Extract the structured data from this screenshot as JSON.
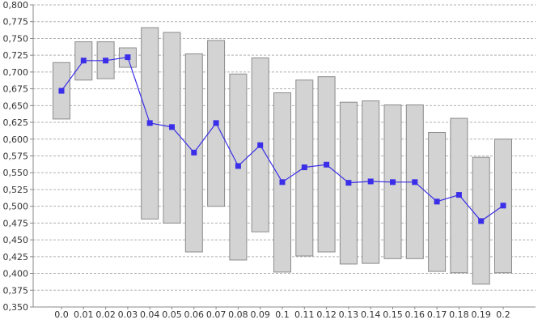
{
  "chart_data": {
    "type": "line",
    "subtype": "box-range-with-line",
    "categories": [
      "0.0",
      "0.01",
      "0.02",
      "0.03",
      "0.04",
      "0.05",
      "0.06",
      "0.07",
      "0.08",
      "0.09",
      "0.1",
      "0.11",
      "0.12",
      "0.13",
      "0.14",
      "0.15",
      "0.16",
      "0.17",
      "0.18",
      "0.19",
      "0.2"
    ],
    "range_low": [
      0.63,
      0.688,
      0.69,
      0.707,
      0.481,
      0.475,
      0.432,
      0.5,
      0.42,
      0.462,
      0.402,
      0.426,
      0.432,
      0.414,
      0.415,
      0.422,
      0.422,
      0.403,
      0.401,
      0.384,
      0.401
    ],
    "range_high": [
      0.714,
      0.745,
      0.745,
      0.736,
      0.766,
      0.759,
      0.727,
      0.747,
      0.697,
      0.721,
      0.669,
      0.688,
      0.693,
      0.655,
      0.657,
      0.651,
      0.651,
      0.61,
      0.631,
      0.573,
      0.6
    ],
    "values": [
      0.672,
      0.717,
      0.717,
      0.722,
      0.624,
      0.618,
      0.58,
      0.624,
      0.56,
      0.591,
      0.536,
      0.558,
      0.562,
      0.535,
      0.537,
      0.536,
      0.536,
      0.507,
      0.517,
      0.478,
      0.501
    ],
    "ylim": [
      0.35,
      0.8
    ],
    "yticks": [
      "0,350",
      "0,375",
      "0,400",
      "0,425",
      "0,450",
      "0,475",
      "0,500",
      "0,525",
      "0,550",
      "0,575",
      "0,600",
      "0,625",
      "0,650",
      "0,675",
      "0,700",
      "0,725",
      "0,750",
      "0,775",
      "0,800"
    ],
    "title": "",
    "xlabel": "",
    "ylabel": "",
    "grid": true,
    "legend": "none",
    "colors": {
      "box_fill": "#d3d3d3",
      "box_stroke": "#8c8c8c",
      "line": "#3a2ee8",
      "marker": "#3a2ee8",
      "grid": "#b0b0b0",
      "axis": "#888888"
    }
  }
}
